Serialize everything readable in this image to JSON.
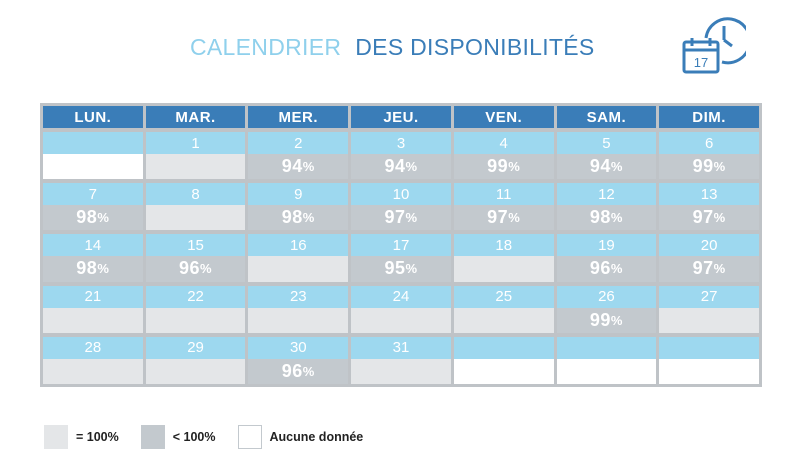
{
  "header": {
    "title_part1": "CALENDRIER",
    "title_part2": "DES DISPONIBILITÉS",
    "icon": "calendar-clock-icon",
    "icon_day": "17"
  },
  "colors": {
    "header_bg": "#3a7db8",
    "number_bg": "#9dd8ef",
    "full": "#e4e6e8",
    "less": "#c3c9ce",
    "none": "#ffffff",
    "title_light": "#8fd0ec",
    "title_dark": "#3a7db8"
  },
  "calendar": {
    "days": [
      "LUN.",
      "MAR.",
      "MER.",
      "JEU.",
      "VEN.",
      "SAM.",
      "DIM."
    ],
    "cells": [
      {
        "day": "",
        "value": "",
        "status": "none",
        "top": "blue"
      },
      {
        "day": "1",
        "value": "",
        "status": "full"
      },
      {
        "day": "2",
        "value": "94",
        "status": "less"
      },
      {
        "day": "3",
        "value": "94",
        "status": "less"
      },
      {
        "day": "4",
        "value": "99",
        "status": "less"
      },
      {
        "day": "5",
        "value": "94",
        "status": "less"
      },
      {
        "day": "6",
        "value": "99",
        "status": "less"
      },
      {
        "day": "7",
        "value": "98",
        "status": "less"
      },
      {
        "day": "8",
        "value": "",
        "status": "full"
      },
      {
        "day": "9",
        "value": "98",
        "status": "less"
      },
      {
        "day": "10",
        "value": "97",
        "status": "less"
      },
      {
        "day": "11",
        "value": "97",
        "status": "less"
      },
      {
        "day": "12",
        "value": "98",
        "status": "less"
      },
      {
        "day": "13",
        "value": "97",
        "status": "less"
      },
      {
        "day": "14",
        "value": "98",
        "status": "less"
      },
      {
        "day": "15",
        "value": "96",
        "status": "less"
      },
      {
        "day": "16",
        "value": "",
        "status": "full"
      },
      {
        "day": "17",
        "value": "95",
        "status": "less"
      },
      {
        "day": "18",
        "value": "",
        "status": "full"
      },
      {
        "day": "19",
        "value": "96",
        "status": "less"
      },
      {
        "day": "20",
        "value": "97",
        "status": "less"
      },
      {
        "day": "21",
        "value": "",
        "status": "full"
      },
      {
        "day": "22",
        "value": "",
        "status": "full"
      },
      {
        "day": "23",
        "value": "",
        "status": "full"
      },
      {
        "day": "24",
        "value": "",
        "status": "full"
      },
      {
        "day": "25",
        "value": "",
        "status": "full"
      },
      {
        "day": "26",
        "value": "99",
        "status": "less"
      },
      {
        "day": "27",
        "value": "",
        "status": "full"
      },
      {
        "day": "28",
        "value": "",
        "status": "full"
      },
      {
        "day": "29",
        "value": "",
        "status": "full"
      },
      {
        "day": "30",
        "value": "96",
        "status": "less"
      },
      {
        "day": "31",
        "value": "",
        "status": "full"
      },
      {
        "day": "",
        "value": "",
        "status": "none",
        "top": "blue"
      },
      {
        "day": "",
        "value": "",
        "status": "none",
        "top": "blue"
      },
      {
        "day": "",
        "value": "",
        "status": "none",
        "top": "blue"
      }
    ],
    "percent_sign": "%"
  },
  "legend": {
    "items": [
      {
        "label": "= 100%",
        "status": "full"
      },
      {
        "label": "< 100%",
        "status": "less"
      },
      {
        "label": "Aucune donnée",
        "status": "none"
      }
    ]
  }
}
